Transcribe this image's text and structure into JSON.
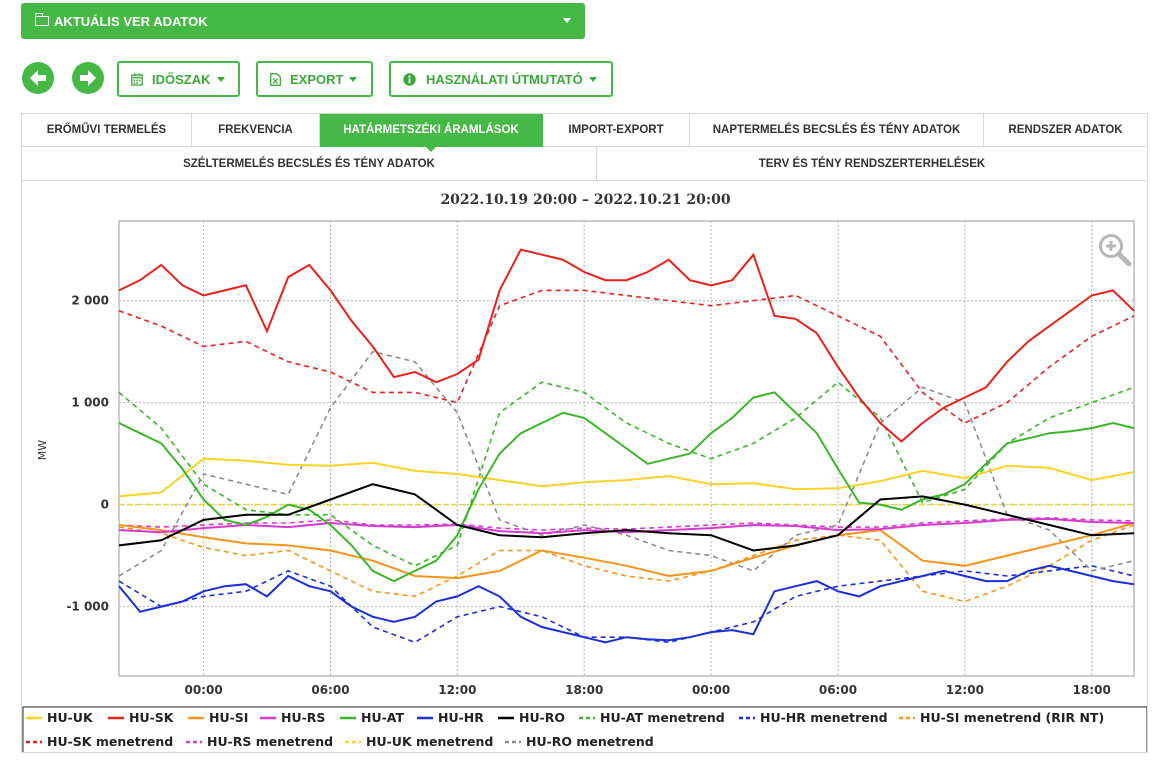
{
  "header": {
    "title": "AKTUÁLIS VER ADATOK"
  },
  "toolbar": {
    "prev_icon": "arrow-left-icon",
    "next_icon": "arrow-right-icon",
    "period_label": "IDŐSZAK",
    "export_label": "EXPORT",
    "guide_label": "HASZNÁLATI ÚTMUTATÓ"
  },
  "tabs_row1": [
    "ERŐMŰVI TERMELÉS",
    "FREKVENCIA",
    "HATÁRMETSZÉKI ÁRAMLÁSOK",
    "IMPORT-EXPORT",
    "NAPTERMELÉS BECSLÉS ÉS TÉNY ADATOK",
    "RENDSZER ADATOK"
  ],
  "active_tab": "HATÁRMETSZÉKI ÁRAMLÁSOK",
  "tabs_row2": [
    "SZÉLTERMELÉS BECSLÉS ÉS TÉNY ADATOK",
    "TERV ÉS TÉNY RENDSZERTERHELÉSEK"
  ],
  "zoom_icon": "zoom-in-icon",
  "chart_data": {
    "type": "line",
    "title": "2022.10.19 20:00 – 2022.10.21 20:00",
    "ylabel": "MW",
    "xlabel": "",
    "x_ticks": [
      "00:00",
      "06:00",
      "12:00",
      "18:00",
      "00:00",
      "06:00",
      "12:00",
      "18:00"
    ],
    "x_range_hours": [
      0,
      48
    ],
    "y_ticks": [
      "-1 000",
      "0",
      "1 000",
      "2 000"
    ],
    "y_tick_values": [
      -1000,
      0,
      1000,
      2000
    ],
    "ylim": [
      -1680,
      2780
    ],
    "grid": true,
    "legend_position": "bottom",
    "series": [
      {
        "name": "HU-UK",
        "color": "#f5d327",
        "dash": false,
        "x": [
          0,
          2,
          4,
          6,
          8,
          10,
          12,
          14,
          16,
          18,
          20,
          22,
          24,
          26,
          28,
          30,
          32,
          34,
          36,
          38,
          40,
          42,
          44,
          46,
          48
        ],
        "values": [
          80,
          120,
          450,
          430,
          390,
          380,
          410,
          330,
          300,
          240,
          180,
          220,
          240,
          280,
          200,
          210,
          150,
          160,
          230,
          330,
          260,
          380,
          360,
          240,
          320
        ]
      },
      {
        "name": "HU-SK",
        "color": "#e8211c",
        "dash": false,
        "x": [
          0,
          1,
          2,
          3,
          4,
          5,
          6,
          7,
          8,
          9,
          10,
          11,
          12,
          13,
          14,
          15,
          16,
          17,
          18,
          19,
          20,
          21,
          22,
          23,
          24,
          25,
          26,
          27,
          28,
          29,
          30,
          31,
          32,
          33,
          34,
          35,
          36,
          37,
          38,
          39,
          40,
          41,
          42,
          43,
          44,
          45,
          46,
          47,
          48
        ],
        "values": [
          2100,
          2200,
          2350,
          2150,
          2050,
          2100,
          2150,
          1700,
          2230,
          2350,
          2100,
          1800,
          1550,
          1250,
          1300,
          1200,
          1280,
          1420,
          2100,
          2500,
          2450,
          2400,
          2280,
          2200,
          2200,
          2280,
          2400,
          2200,
          2150,
          2200,
          2450,
          1850,
          1820,
          1680,
          1350,
          1050,
          800,
          620,
          800,
          950,
          1050,
          1150,
          1400,
          1600,
          1750,
          1900,
          2050,
          2100,
          1900
        ]
      },
      {
        "name": "HU-SI",
        "color": "#f7941d",
        "dash": false,
        "x": [
          0,
          2,
          4,
          6,
          8,
          10,
          12,
          14,
          16,
          18,
          20,
          22,
          24,
          26,
          28,
          30,
          32,
          34,
          36,
          38,
          40,
          42,
          44,
          46,
          48
        ],
        "values": [
          -200,
          -250,
          -320,
          -380,
          -400,
          -450,
          -550,
          -700,
          -720,
          -650,
          -450,
          -520,
          -600,
          -700,
          -650,
          -520,
          -400,
          -300,
          -250,
          -550,
          -600,
          -500,
          -400,
          -300,
          -180
        ]
      },
      {
        "name": "HU-RS",
        "color": "#d63ad0",
        "dash": false,
        "x": [
          0,
          2,
          4,
          6,
          8,
          10,
          12,
          14,
          16,
          18,
          20,
          22,
          24,
          26,
          28,
          30,
          32,
          34,
          36,
          38,
          40,
          42,
          44,
          46,
          48
        ],
        "values": [
          -250,
          -270,
          -230,
          -200,
          -220,
          -180,
          -210,
          -220,
          -200,
          -260,
          -280,
          -250,
          -270,
          -250,
          -230,
          -200,
          -210,
          -250,
          -240,
          -200,
          -180,
          -150,
          -140,
          -170,
          -180
        ]
      },
      {
        "name": "HU-AT",
        "color": "#3cb52a",
        "dash": false,
        "x": [
          0,
          1,
          2,
          3,
          4,
          5,
          6,
          7,
          8,
          9,
          10,
          11,
          12,
          13,
          14,
          15,
          16,
          17,
          18,
          19,
          20,
          21,
          22,
          23,
          24,
          25,
          26,
          27,
          28,
          29,
          30,
          31,
          32,
          33,
          34,
          35,
          36,
          37,
          38,
          39,
          40,
          41,
          42,
          43,
          44,
          45,
          46,
          47,
          48
        ],
        "values": [
          800,
          700,
          600,
          350,
          50,
          -150,
          -200,
          -120,
          0,
          -50,
          -200,
          -400,
          -650,
          -750,
          -650,
          -550,
          -300,
          150,
          500,
          700,
          800,
          900,
          850,
          700,
          550,
          400,
          450,
          500,
          700,
          850,
          1050,
          1100,
          900,
          700,
          350,
          20,
          0,
          -50,
          50,
          100,
          200,
          400,
          600,
          650,
          700,
          720,
          750,
          800,
          750
        ]
      },
      {
        "name": "HU-HR",
        "color": "#1b2fd6",
        "dash": false,
        "x": [
          0,
          1,
          2,
          3,
          4,
          5,
          6,
          7,
          8,
          9,
          10,
          11,
          12,
          13,
          14,
          15,
          16,
          17,
          18,
          19,
          20,
          21,
          22,
          23,
          24,
          25,
          26,
          27,
          28,
          29,
          30,
          31,
          32,
          33,
          34,
          35,
          36,
          37,
          38,
          39,
          40,
          41,
          42,
          43,
          44,
          45,
          46,
          47,
          48
        ],
        "values": [
          -800,
          -1050,
          -1000,
          -950,
          -850,
          -800,
          -780,
          -900,
          -700,
          -800,
          -850,
          -1000,
          -1100,
          -1150,
          -1100,
          -950,
          -900,
          -800,
          -900,
          -1100,
          -1200,
          -1250,
          -1300,
          -1350,
          -1300,
          -1320,
          -1330,
          -1300,
          -1250,
          -1230,
          -1270,
          -850,
          -800,
          -750,
          -850,
          -900,
          -800,
          -750,
          -700,
          -650,
          -700,
          -750,
          -750,
          -650,
          -600,
          -650,
          -700,
          -750,
          -780
        ]
      },
      {
        "name": "HU-RO",
        "color": "#000000",
        "dash": false,
        "x": [
          0,
          2,
          4,
          6,
          8,
          10,
          12,
          14,
          16,
          18,
          20,
          22,
          24,
          26,
          28,
          30,
          32,
          34,
          36,
          38,
          40,
          42,
          44,
          46,
          48
        ],
        "values": [
          -400,
          -350,
          -150,
          -100,
          -100,
          50,
          200,
          100,
          -200,
          -300,
          -320,
          -280,
          -250,
          -280,
          -300,
          -450,
          -400,
          -300,
          50,
          80,
          0,
          -100,
          -200,
          -300,
          -280
        ]
      },
      {
        "name": "HU-AT menetrend",
        "color": "#3cb52a",
        "dash": true,
        "x": [
          0,
          2,
          4,
          6,
          8,
          10,
          12,
          14,
          16,
          18,
          20,
          22,
          24,
          26,
          28,
          30,
          32,
          34,
          36,
          38,
          40,
          42,
          44,
          46,
          48
        ],
        "values": [
          1100,
          750,
          200,
          -50,
          -100,
          -100,
          -400,
          -600,
          -400,
          900,
          1200,
          1100,
          800,
          600,
          450,
          600,
          850,
          1200,
          850,
          20,
          150,
          600,
          850,
          1000,
          1150
        ]
      },
      {
        "name": "HU-HR menetrend",
        "color": "#1b2fd6",
        "dash": true,
        "x": [
          0,
          2,
          4,
          6,
          8,
          10,
          12,
          14,
          16,
          18,
          20,
          22,
          24,
          26,
          28,
          30,
          32,
          34,
          36,
          38,
          40,
          42,
          44,
          46,
          48
        ],
        "values": [
          -750,
          -1000,
          -900,
          -850,
          -650,
          -800,
          -1200,
          -1350,
          -1100,
          -1000,
          -1100,
          -1300,
          -1300,
          -1350,
          -1250,
          -1150,
          -900,
          -800,
          -750,
          -700,
          -650,
          -700,
          -650,
          -600,
          -700
        ]
      },
      {
        "name": "HU-SI menetrend (RIR NT)",
        "color": "#f7941d",
        "dash": true,
        "x": [
          0,
          2,
          4,
          6,
          8,
          10,
          12,
          14,
          16,
          18,
          20,
          22,
          24,
          26,
          28,
          30,
          32,
          34,
          36,
          38,
          40,
          42,
          44,
          46,
          48
        ],
        "values": [
          -220,
          -280,
          -420,
          -500,
          -450,
          -650,
          -850,
          -900,
          -700,
          -450,
          -450,
          -600,
          -700,
          -750,
          -650,
          -500,
          -350,
          -300,
          -350,
          -850,
          -950,
          -800,
          -600,
          -350,
          -200
        ]
      },
      {
        "name": "HU-SK menetrend",
        "color": "#e8211c",
        "dash": true,
        "x": [
          0,
          2,
          4,
          6,
          8,
          10,
          12,
          14,
          16,
          18,
          20,
          22,
          24,
          26,
          28,
          30,
          32,
          34,
          36,
          38,
          40,
          42,
          44,
          46,
          48
        ],
        "values": [
          1900,
          1750,
          1550,
          1600,
          1400,
          1300,
          1100,
          1100,
          1000,
          1950,
          2100,
          2100,
          2050,
          2000,
          1950,
          2000,
          2050,
          1850,
          1650,
          1100,
          800,
          1000,
          1350,
          1650,
          1850
        ]
      },
      {
        "name": "HU-RS menetrend",
        "color": "#d63ad0",
        "dash": true,
        "x": [
          0,
          2,
          4,
          6,
          8,
          10,
          12,
          14,
          16,
          18,
          20,
          22,
          24,
          26,
          28,
          30,
          32,
          34,
          36,
          38,
          40,
          42,
          44,
          46,
          48
        ],
        "values": [
          -200,
          -220,
          -200,
          -180,
          -180,
          -150,
          -200,
          -200,
          -190,
          -230,
          -250,
          -230,
          -240,
          -220,
          -200,
          -180,
          -200,
          -220,
          -220,
          -180,
          -160,
          -140,
          -130,
          -150,
          -160
        ]
      },
      {
        "name": "HU-UK menetrend",
        "color": "#f5d327",
        "dash": true,
        "x": [
          0,
          48
        ],
        "values": [
          0,
          0
        ]
      },
      {
        "name": "HU-RO menetrend",
        "color": "#8c8c8c",
        "dash": true,
        "x": [
          0,
          2,
          4,
          6,
          8,
          10,
          12,
          14,
          16,
          18,
          20,
          22,
          24,
          26,
          28,
          30,
          32,
          34,
          36,
          38,
          40,
          42,
          44,
          46,
          48
        ],
        "values": [
          -700,
          -450,
          300,
          200,
          100,
          950,
          1500,
          1400,
          900,
          -150,
          -300,
          -200,
          -300,
          -450,
          -500,
          -650,
          -300,
          -200,
          800,
          1150,
          1000,
          -100,
          -250,
          -650,
          -550
        ]
      }
    ]
  }
}
